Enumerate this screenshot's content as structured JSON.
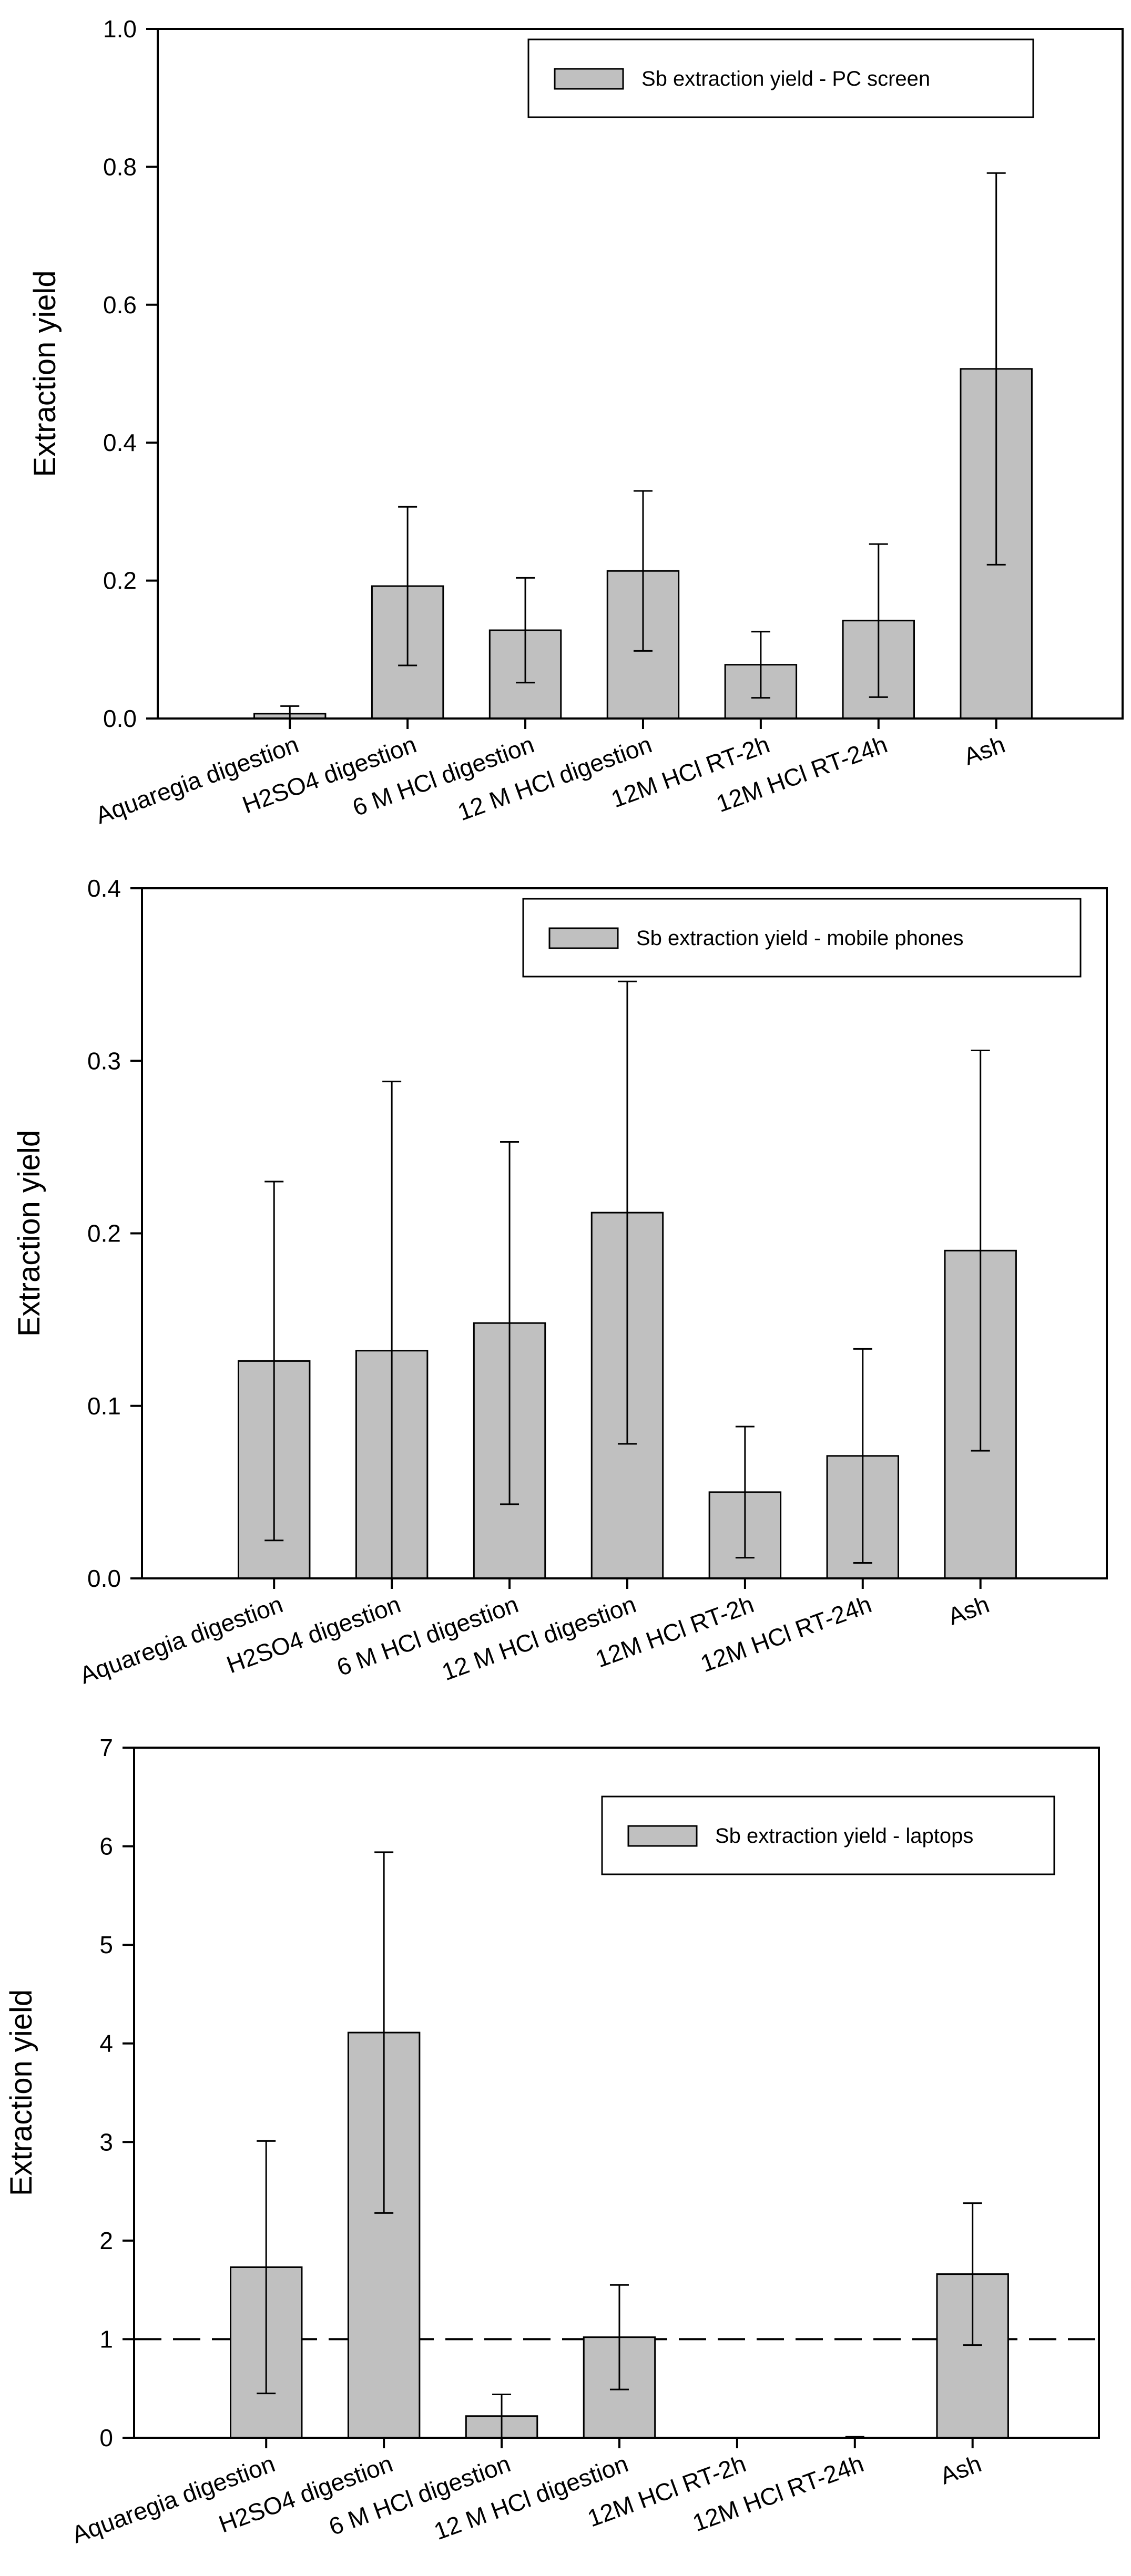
{
  "chart_data": [
    {
      "type": "bar",
      "title": "",
      "xlabel": "",
      "ylabel": "Extraction yield",
      "ylim": [
        0,
        1.0
      ],
      "yticks": [
        "0.0",
        "0.2",
        "0.4",
        "0.6",
        "0.8",
        "1.0"
      ],
      "categories": [
        "Aquaregia digestion",
        "H2SO4 digestion",
        "6 M HCl digestion",
        "12 M HCl digestion",
        "12M HCl RT-2h",
        "12M HCl RT-24h",
        "Ash"
      ],
      "series": [
        {
          "name": "Sb extraction yield - PC screen",
          "values": [
            0.007,
            0.192,
            0.128,
            0.214,
            0.078,
            0.142,
            0.507
          ],
          "error": [
            0.011,
            0.115,
            0.076,
            0.116,
            0.048,
            0.111,
            0.284
          ],
          "color": "#c0c0c0"
        }
      ],
      "legend": {
        "position": "top-right"
      },
      "reference_line": null
    },
    {
      "type": "bar",
      "title": "",
      "xlabel": "",
      "ylabel": "Extraction yield",
      "ylim": [
        0,
        0.4
      ],
      "yticks": [
        "0.0",
        "0.1",
        "0.2",
        "0.3",
        "0.4"
      ],
      "categories": [
        "Aquaregia digestion",
        "H2SO4 digestion",
        "6 M HCl digestion",
        "12 M HCl digestion",
        "12M HCl RT-2h",
        "12M HCl RT-24h",
        "Ash"
      ],
      "series": [
        {
          "name": "Sb extraction yield - mobile phones",
          "values": [
            0.126,
            0.132,
            0.148,
            0.212,
            0.05,
            0.071,
            0.19
          ],
          "error": [
            0.104,
            0.156,
            0.105,
            0.134,
            0.038,
            0.062,
            0.116
          ],
          "color": "#c0c0c0"
        }
      ],
      "legend": {
        "position": "top-right"
      },
      "reference_line": null
    },
    {
      "type": "bar",
      "title": "",
      "xlabel": "",
      "ylabel": "Extraction yield",
      "ylim": [
        0,
        7
      ],
      "yticks": [
        "0",
        "1",
        "2",
        "3",
        "4",
        "5",
        "6",
        "7"
      ],
      "categories": [
        "Aquaregia digestion",
        "H2SO4 digestion",
        "6 M HCl digestion",
        "12 M HCl digestion",
        "12M HCl RT-2h",
        "12M HCl RT-24h",
        "Ash"
      ],
      "series": [
        {
          "name": "Sb extraction yield - laptops",
          "values": [
            1.73,
            4.11,
            0.22,
            1.02,
            0,
            0,
            1.66
          ],
          "error": [
            1.28,
            1.83,
            0.22,
            0.53,
            0,
            0.01,
            0.72
          ],
          "color": "#c0c0c0"
        }
      ],
      "legend": {
        "position": "top-right"
      },
      "reference_line": {
        "y": 1,
        "style": "dashed"
      }
    }
  ],
  "colors": {
    "bar": "#c0c0c0",
    "stroke": "#000000",
    "background": "#ffffff"
  }
}
